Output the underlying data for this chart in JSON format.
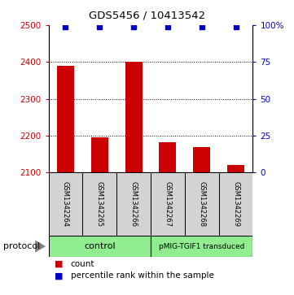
{
  "title": "GDS5456 / 10413542",
  "samples": [
    "GSM1342264",
    "GSM1342265",
    "GSM1342266",
    "GSM1342267",
    "GSM1342268",
    "GSM1342269"
  ],
  "counts": [
    2390,
    2195,
    2400,
    2183,
    2170,
    2120
  ],
  "percentile_ranks": [
    99,
    99,
    99,
    99,
    99,
    99
  ],
  "ylim_left": [
    2100,
    2500
  ],
  "ylim_right": [
    0,
    100
  ],
  "yticks_left": [
    2100,
    2200,
    2300,
    2400,
    2500
  ],
  "yticks_right": [
    0,
    25,
    50,
    75,
    100
  ],
  "ytick_labels_right": [
    "0",
    "25",
    "50",
    "75",
    "100%"
  ],
  "bar_color": "#cc0000",
  "dot_color": "#0000cc",
  "groups": [
    {
      "label": "control",
      "n": 3,
      "color": "#90ee90"
    },
    {
      "label": "pMIG-TGIF1 transduced",
      "n": 3,
      "color": "#90ee90"
    }
  ],
  "protocol_label": "protocol",
  "legend_count_label": "count",
  "legend_pct_label": "percentile rank within the sample",
  "sample_box_color": "#d3d3d3",
  "plot_bg": "#ffffff",
  "left_tick_color": "#cc0000",
  "right_tick_color": "#0000cc",
  "grid_dotted_vals": [
    2200,
    2300,
    2400
  ],
  "bar_width": 0.5
}
